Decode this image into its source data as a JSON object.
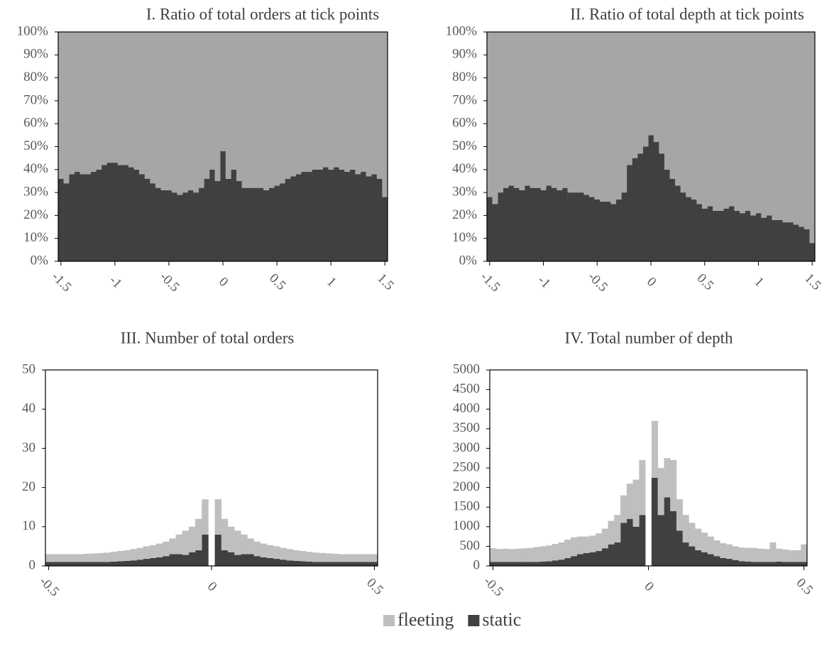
{
  "chart_data": [
    {
      "type": "bar",
      "stacked": true,
      "title": "I. Ratio of total orders at tick points",
      "x": [
        -1.5,
        -1.45,
        -1.4,
        -1.35,
        -1.3,
        -1.25,
        -1.2,
        -1.15,
        -1.1,
        -1.05,
        -1,
        -0.95,
        -0.9,
        -0.85,
        -0.8,
        -0.75,
        -0.7,
        -0.65,
        -0.6,
        -0.55,
        -0.5,
        -0.45,
        -0.4,
        -0.35,
        -0.3,
        -0.25,
        -0.2,
        -0.15,
        -0.1,
        -0.05,
        0,
        0.05,
        0.1,
        0.15,
        0.2,
        0.25,
        0.3,
        0.35,
        0.4,
        0.45,
        0.5,
        0.55,
        0.6,
        0.65,
        0.7,
        0.75,
        0.8,
        0.85,
        0.9,
        0.95,
        1,
        1.05,
        1.1,
        1.15,
        1.2,
        1.25,
        1.3,
        1.35,
        1.4,
        1.45,
        1.5
      ],
      "series": [
        {
          "name": "static",
          "color": "#404040",
          "values": [
            36,
            34,
            38,
            39,
            38,
            38,
            39,
            40,
            42,
            43,
            43,
            42,
            42,
            41,
            40,
            38,
            36,
            34,
            32,
            31,
            31,
            30,
            29,
            30,
            31,
            30,
            32,
            36,
            40,
            35,
            48,
            36,
            40,
            35,
            32,
            32,
            32,
            32,
            31,
            32,
            33,
            34,
            36,
            37,
            38,
            39,
            39,
            40,
            40,
            41,
            40,
            41,
            40,
            39,
            40,
            38,
            39,
            37,
            38,
            36,
            28
          ]
        },
        {
          "name": "fleeting",
          "color": "#a6a6a6",
          "values": [
            64,
            66,
            62,
            61,
            62,
            62,
            61,
            60,
            58,
            57,
            57,
            58,
            58,
            59,
            60,
            62,
            64,
            66,
            68,
            69,
            69,
            70,
            71,
            70,
            69,
            70,
            68,
            64,
            60,
            65,
            52,
            64,
            60,
            65,
            68,
            68,
            68,
            68,
            69,
            68,
            67,
            66,
            64,
            63,
            62,
            61,
            61,
            60,
            60,
            59,
            60,
            59,
            60,
            61,
            60,
            62,
            61,
            63,
            62,
            64,
            72
          ]
        }
      ],
      "xlim": [
        -1.5,
        1.5
      ],
      "xticks": [
        -1.5,
        -1,
        -0.5,
        0,
        0.5,
        1,
        1.5
      ],
      "ylim": [
        0,
        100
      ],
      "yticks": [
        {
          "value": 0,
          "label": "0%"
        },
        {
          "value": 10,
          "label": "10%"
        },
        {
          "value": 20,
          "label": "20%"
        },
        {
          "value": 30,
          "label": "30%"
        },
        {
          "value": 40,
          "label": "40%"
        },
        {
          "value": 50,
          "label": "50%"
        },
        {
          "value": 60,
          "label": "60%"
        },
        {
          "value": 70,
          "label": "70%"
        },
        {
          "value": 80,
          "label": "80%"
        },
        {
          "value": 90,
          "label": "90%"
        },
        {
          "value": 100,
          "label": "100%"
        }
      ]
    },
    {
      "type": "bar",
      "stacked": true,
      "title": "II. Ratio of total depth at tick points",
      "x": [
        -1.5,
        -1.45,
        -1.4,
        -1.35,
        -1.3,
        -1.25,
        -1.2,
        -1.15,
        -1.1,
        -1.05,
        -1,
        -0.95,
        -0.9,
        -0.85,
        -0.8,
        -0.75,
        -0.7,
        -0.65,
        -0.6,
        -0.55,
        -0.5,
        -0.45,
        -0.4,
        -0.35,
        -0.3,
        -0.25,
        -0.2,
        -0.15,
        -0.1,
        -0.05,
        0,
        0.05,
        0.1,
        0.15,
        0.2,
        0.25,
        0.3,
        0.35,
        0.4,
        0.45,
        0.5,
        0.55,
        0.6,
        0.65,
        0.7,
        0.75,
        0.8,
        0.85,
        0.9,
        0.95,
        1,
        1.05,
        1.1,
        1.15,
        1.2,
        1.25,
        1.3,
        1.35,
        1.4,
        1.45,
        1.5
      ],
      "series": [
        {
          "name": "static",
          "color": "#404040",
          "values": [
            28,
            25,
            30,
            32,
            33,
            32,
            31,
            33,
            32,
            32,
            31,
            33,
            32,
            31,
            32,
            30,
            30,
            30,
            29,
            28,
            27,
            26,
            26,
            25,
            27,
            30,
            42,
            45,
            47,
            50,
            55,
            52,
            47,
            40,
            36,
            33,
            30,
            28,
            27,
            25,
            23,
            24,
            22,
            22,
            23,
            24,
            22,
            21,
            22,
            20,
            21,
            19,
            20,
            18,
            18,
            17,
            17,
            16,
            15,
            14,
            8
          ]
        },
        {
          "name": "fleeting",
          "color": "#a6a6a6",
          "values": [
            72,
            75,
            70,
            68,
            67,
            68,
            69,
            67,
            68,
            68,
            69,
            67,
            68,
            69,
            68,
            70,
            70,
            70,
            71,
            72,
            73,
            74,
            74,
            75,
            73,
            70,
            58,
            55,
            53,
            50,
            45,
            48,
            53,
            60,
            64,
            67,
            70,
            72,
            73,
            75,
            77,
            76,
            78,
            78,
            77,
            76,
            78,
            79,
            78,
            80,
            79,
            81,
            80,
            82,
            82,
            83,
            83,
            84,
            85,
            86,
            92
          ]
        }
      ],
      "xlim": [
        -1.5,
        1.5
      ],
      "xticks": [
        -1.5,
        -1,
        -0.5,
        0,
        0.5,
        1,
        1.5
      ],
      "ylim": [
        0,
        100
      ],
      "yticks": [
        {
          "value": 0,
          "label": "0%"
        },
        {
          "value": 10,
          "label": "10%"
        },
        {
          "value": 20,
          "label": "20%"
        },
        {
          "value": 30,
          "label": "30%"
        },
        {
          "value": 40,
          "label": "40%"
        },
        {
          "value": 50,
          "label": "50%"
        },
        {
          "value": 60,
          "label": "60%"
        },
        {
          "value": 70,
          "label": "70%"
        },
        {
          "value": 80,
          "label": "80%"
        },
        {
          "value": 90,
          "label": "90%"
        },
        {
          "value": 100,
          "label": "100%"
        }
      ]
    },
    {
      "type": "bar",
      "stacked": true,
      "title": "III. Number of total orders",
      "x": [
        -0.5,
        -0.48,
        -0.46,
        -0.44,
        -0.42,
        -0.4,
        -0.38,
        -0.36,
        -0.34,
        -0.32,
        -0.3,
        -0.28,
        -0.26,
        -0.24,
        -0.22,
        -0.2,
        -0.18,
        -0.16,
        -0.14,
        -0.12,
        -0.1,
        -0.08,
        -0.06,
        -0.04,
        -0.02,
        0,
        0.02,
        0.04,
        0.06,
        0.08,
        0.1,
        0.12,
        0.14,
        0.16,
        0.18,
        0.2,
        0.22,
        0.24,
        0.26,
        0.28,
        0.3,
        0.32,
        0.34,
        0.36,
        0.38,
        0.4,
        0.42,
        0.44,
        0.46,
        0.48,
        0.5
      ],
      "series": [
        {
          "name": "static",
          "color": "#404040",
          "values": [
            1,
            1,
            1,
            1,
            1,
            1,
            1,
            1,
            1,
            1,
            1.1,
            1.2,
            1.3,
            1.4,
            1.6,
            1.8,
            2,
            2.2,
            2.5,
            3,
            3,
            2.8,
            3.5,
            4,
            8,
            null,
            8,
            4,
            3.5,
            2.8,
            3,
            3,
            2.5,
            2.2,
            2,
            1.8,
            1.6,
            1.4,
            1.3,
            1.2,
            1.1,
            1,
            1,
            1,
            1,
            1,
            1,
            1,
            1,
            1,
            1
          ]
        },
        {
          "name": "fleeting",
          "color": "#bfbfbf",
          "values": [
            2,
            2,
            2,
            2,
            2,
            2,
            2.1,
            2.2,
            2.3,
            2.4,
            2.5,
            2.6,
            2.7,
            2.9,
            3,
            3.2,
            3.3,
            3.5,
            3.7,
            4,
            5,
            6.2,
            6.5,
            8,
            9,
            null,
            9,
            8,
            6.5,
            6.2,
            5,
            4,
            3.7,
            3.5,
            3.3,
            3.2,
            3,
            2.9,
            2.7,
            2.6,
            2.5,
            2.4,
            2.3,
            2.2,
            2.1,
            2,
            2,
            2,
            2,
            2,
            2
          ]
        }
      ],
      "xlim": [
        -0.5,
        0.5
      ],
      "xticks": [
        -0.5,
        0,
        0.5
      ],
      "ylim": [
        0,
        50
      ],
      "yticks": [
        0,
        10,
        20,
        30,
        40,
        50
      ]
    },
    {
      "type": "bar",
      "stacked": true,
      "title": "IV. Total number of depth",
      "x": [
        -0.5,
        -0.48,
        -0.46,
        -0.44,
        -0.42,
        -0.4,
        -0.38,
        -0.36,
        -0.34,
        -0.32,
        -0.3,
        -0.28,
        -0.26,
        -0.24,
        -0.22,
        -0.2,
        -0.18,
        -0.16,
        -0.14,
        -0.12,
        -0.1,
        -0.08,
        -0.06,
        -0.04,
        -0.02,
        0,
        0.02,
        0.04,
        0.06,
        0.08,
        0.1,
        0.12,
        0.14,
        0.16,
        0.18,
        0.2,
        0.22,
        0.24,
        0.26,
        0.28,
        0.3,
        0.32,
        0.34,
        0.36,
        0.38,
        0.4,
        0.42,
        0.44,
        0.46,
        0.48,
        0.5
      ],
      "series": [
        {
          "name": "static",
          "color": "#404040",
          "values": [
            100,
            100,
            100,
            100,
            100,
            100,
            100,
            100,
            110,
            120,
            140,
            160,
            200,
            250,
            300,
            330,
            350,
            380,
            450,
            550,
            600,
            1100,
            1200,
            1000,
            1300,
            null,
            2250,
            1300,
            1750,
            1400,
            900,
            600,
            500,
            400,
            350,
            300,
            250,
            200,
            180,
            150,
            120,
            110,
            100,
            100,
            100,
            100,
            110,
            100,
            100,
            100,
            100
          ]
        },
        {
          "name": "fleeting",
          "color": "#bfbfbf",
          "values": [
            350,
            330,
            340,
            330,
            340,
            350,
            360,
            380,
            390,
            400,
            420,
            440,
            470,
            480,
            450,
            420,
            420,
            450,
            500,
            600,
            700,
            700,
            900,
            1200,
            1400,
            null,
            1450,
            1200,
            1000,
            1300,
            800,
            700,
            600,
            550,
            500,
            450,
            400,
            380,
            370,
            350,
            350,
            350,
            360,
            340,
            330,
            500,
            330,
            320,
            300,
            300,
            450
          ]
        }
      ],
      "xlim": [
        -0.5,
        0.5
      ],
      "xticks": [
        -0.5,
        0,
        0.5
      ],
      "ylim": [
        0,
        5000
      ],
      "yticks": [
        0,
        500,
        1000,
        1500,
        2000,
        2500,
        3000,
        3500,
        4000,
        4500,
        5000
      ]
    }
  ]
}
